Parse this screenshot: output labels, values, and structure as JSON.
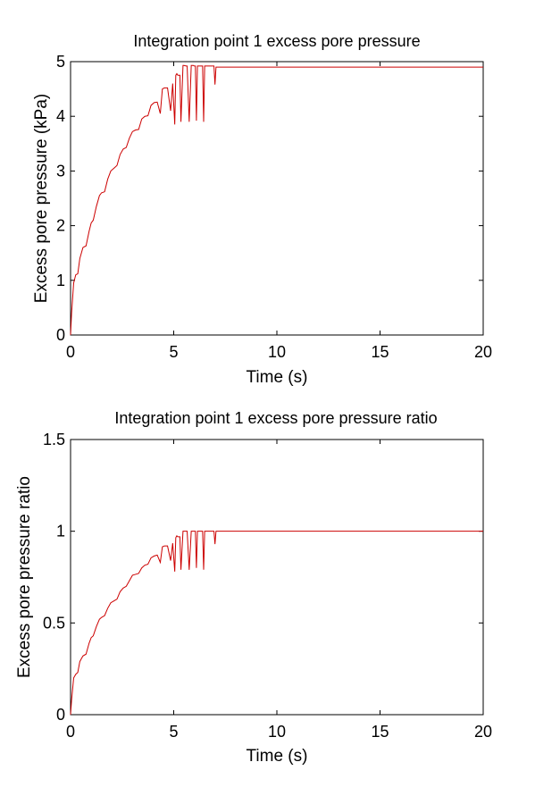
{
  "figure": {
    "background": "#ffffff",
    "axes_color": "#000000",
    "line_color": "#cc0000"
  },
  "chart_data": [
    {
      "type": "line",
      "title": "Integration point 1 excess pore pressure",
      "xlabel": "Time (s)",
      "ylabel": "Excess pore pressure (kPa)",
      "xlim": [
        0,
        20
      ],
      "ylim": [
        0,
        5
      ],
      "xticks": [
        0,
        5,
        10,
        15,
        20
      ],
      "yticks": [
        0,
        1,
        2,
        3,
        4,
        5
      ],
      "grid": false,
      "series": [
        {
          "color": "#cc0000",
          "x": [
            0,
            0.05,
            0.15,
            0.25,
            0.35,
            0.45,
            0.6,
            0.75,
            0.9,
            1.0,
            1.1,
            1.25,
            1.4,
            1.5,
            1.65,
            1.8,
            1.95,
            2.1,
            2.25,
            2.4,
            2.55,
            2.7,
            2.85,
            3.0,
            3.15,
            3.3,
            3.45,
            3.6,
            3.75,
            3.9,
            4.05,
            4.2,
            4.35,
            4.45,
            4.55,
            4.7,
            4.85,
            4.95,
            5.05,
            5.1,
            5.15,
            5.2,
            5.3,
            5.35,
            5.45,
            5.5,
            5.6,
            5.65,
            5.75,
            5.85,
            5.95,
            6.0,
            6.05,
            6.1,
            6.15,
            6.2,
            6.3,
            6.4,
            6.45,
            6.5,
            6.55,
            6.6,
            6.65,
            6.75,
            6.85,
            6.95,
            7.0,
            7.05,
            7.1,
            7.15,
            7.3,
            7.6,
            10,
            15,
            20
          ],
          "y": [
            0,
            0.4,
            0.95,
            1.1,
            1.12,
            1.4,
            1.6,
            1.63,
            1.9,
            2.05,
            2.1,
            2.35,
            2.55,
            2.6,
            2.62,
            2.85,
            3.0,
            3.05,
            3.1,
            3.3,
            3.4,
            3.43,
            3.6,
            3.72,
            3.75,
            3.76,
            3.95,
            4.0,
            4.01,
            4.2,
            4.25,
            4.26,
            4.05,
            4.5,
            4.52,
            4.52,
            4.1,
            4.6,
            3.85,
            4.75,
            4.78,
            4.75,
            4.75,
            3.9,
            4.93,
            4.93,
            4.92,
            4.92,
            3.9,
            4.93,
            4.93,
            4.92,
            4.92,
            3.92,
            4.92,
            4.92,
            4.92,
            4.92,
            3.9,
            4.92,
            4.92,
            4.92,
            4.92,
            4.92,
            4.92,
            4.92,
            4.58,
            4.9,
            4.9,
            4.9,
            4.9,
            4.9,
            4.9,
            4.9,
            4.9
          ]
        }
      ]
    },
    {
      "type": "line",
      "title": "Integration point 1 excess pore pressure ratio",
      "xlabel": "Time (s)",
      "ylabel": "Excess pore pressure ratio",
      "xlim": [
        0,
        20
      ],
      "ylim": [
        0,
        1.5
      ],
      "xticks": [
        0,
        5,
        10,
        15,
        20
      ],
      "yticks": [
        0,
        0.5,
        1,
        1.5
      ],
      "grid": false,
      "series": [
        {
          "color": "#cc0000",
          "x": [
            0,
            0.05,
            0.15,
            0.25,
            0.35,
            0.45,
            0.6,
            0.75,
            0.9,
            1.0,
            1.1,
            1.25,
            1.4,
            1.5,
            1.65,
            1.8,
            1.95,
            2.1,
            2.25,
            2.4,
            2.55,
            2.7,
            2.85,
            3.0,
            3.15,
            3.3,
            3.45,
            3.6,
            3.75,
            3.9,
            4.05,
            4.2,
            4.35,
            4.45,
            4.55,
            4.7,
            4.85,
            4.95,
            5.05,
            5.1,
            5.15,
            5.2,
            5.3,
            5.35,
            5.45,
            5.5,
            5.6,
            5.65,
            5.75,
            5.85,
            5.95,
            6.0,
            6.05,
            6.1,
            6.15,
            6.2,
            6.3,
            6.4,
            6.45,
            6.5,
            6.55,
            6.6,
            6.65,
            6.75,
            6.85,
            6.95,
            7.0,
            7.05,
            7.1,
            7.15,
            7.3,
            7.6,
            10,
            15,
            20
          ],
          "y": [
            0,
            0.08,
            0.2,
            0.22,
            0.23,
            0.29,
            0.32,
            0.33,
            0.39,
            0.42,
            0.43,
            0.48,
            0.52,
            0.53,
            0.54,
            0.58,
            0.61,
            0.62,
            0.63,
            0.67,
            0.69,
            0.7,
            0.73,
            0.76,
            0.765,
            0.77,
            0.8,
            0.815,
            0.82,
            0.855,
            0.865,
            0.87,
            0.83,
            0.915,
            0.92,
            0.92,
            0.84,
            0.935,
            0.78,
            0.965,
            0.975,
            0.97,
            0.97,
            0.79,
            1.0,
            1.0,
            1.0,
            1.0,
            0.79,
            1.0,
            1.0,
            1.0,
            1.0,
            0.8,
            1.0,
            1.0,
            1.0,
            1.0,
            0.79,
            1.0,
            1.0,
            1.0,
            1.0,
            1.0,
            1.0,
            1.0,
            0.93,
            1.0,
            1.0,
            1.0,
            1.0,
            1.0,
            1.0,
            1.0,
            1.0
          ]
        }
      ]
    }
  ]
}
